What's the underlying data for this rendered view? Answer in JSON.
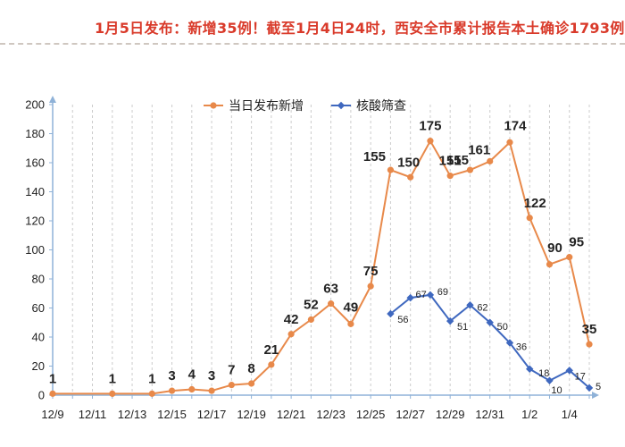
{
  "headline": {
    "text": "1月5日发布：新增35例！截至1月4日24时，西安全市累计报告本土确诊1793例",
    "color": "#d93a2a"
  },
  "colors": {
    "series_a": "#e8894a",
    "series_b": "#3f68bf",
    "axis": "#8fb2d8",
    "grid": "#cccccc",
    "text": "#222222"
  },
  "chart_data": {
    "type": "line",
    "title": "",
    "xlabel": "",
    "ylabel": "",
    "ylim": [
      0,
      200
    ],
    "yticks": [
      0,
      20,
      40,
      60,
      80,
      100,
      120,
      140,
      160,
      180,
      200
    ],
    "x_categories": [
      "12/9",
      "12/10",
      "12/11",
      "12/12",
      "12/13",
      "12/14",
      "12/15",
      "12/16",
      "12/17",
      "12/18",
      "12/19",
      "12/20",
      "12/21",
      "12/22",
      "12/23",
      "12/24",
      "12/25",
      "12/26",
      "12/27",
      "12/28",
      "12/29",
      "12/30",
      "12/31",
      "1/1",
      "1/2",
      "1/3",
      "1/4",
      "1/5"
    ],
    "x_tick_labels": [
      "12/9",
      "12/11",
      "12/13",
      "12/15",
      "12/17",
      "12/19",
      "12/21",
      "12/23",
      "12/25",
      "12/27",
      "12/29",
      "12/31",
      "1/2",
      "1/4"
    ],
    "grid": true,
    "legend_position": "top",
    "series": [
      {
        "name": "当日发布新增",
        "x": [
          "12/9",
          "12/12",
          "12/14",
          "12/15",
          "12/16",
          "12/17",
          "12/18",
          "12/19",
          "12/20",
          "12/21",
          "12/22",
          "12/23",
          "12/24",
          "12/25",
          "12/26",
          "12/27",
          "12/28",
          "12/29",
          "12/30",
          "12/31",
          "1/1",
          "1/2",
          "1/3",
          "1/4",
          "1/5"
        ],
        "values": [
          1,
          1,
          1,
          3,
          4,
          3,
          7,
          8,
          21,
          42,
          52,
          63,
          49,
          75,
          155,
          150,
          175,
          151,
          155,
          161,
          174,
          122,
          90,
          95,
          35
        ],
        "labels": [
          "1",
          "1",
          "1",
          "3",
          "4",
          "3",
          "7",
          "8",
          "21",
          "42",
          "52",
          "63",
          "49",
          "75",
          "155",
          "150",
          "175",
          "151",
          "155",
          "161",
          "174",
          "122",
          "90",
          "95",
          "35"
        ]
      },
      {
        "name": "核酸筛查",
        "x": [
          "12/26",
          "12/27",
          "12/28",
          "12/29",
          "12/30",
          "12/31",
          "1/1",
          "1/2",
          "1/3",
          "1/4",
          "1/5"
        ],
        "values": [
          56,
          67,
          69,
          51,
          62,
          50,
          36,
          18,
          10,
          17,
          5
        ],
        "labels": [
          "56",
          "67",
          "69",
          "51",
          "62",
          "50",
          "36",
          "18",
          "10",
          "17",
          "5"
        ]
      }
    ]
  }
}
